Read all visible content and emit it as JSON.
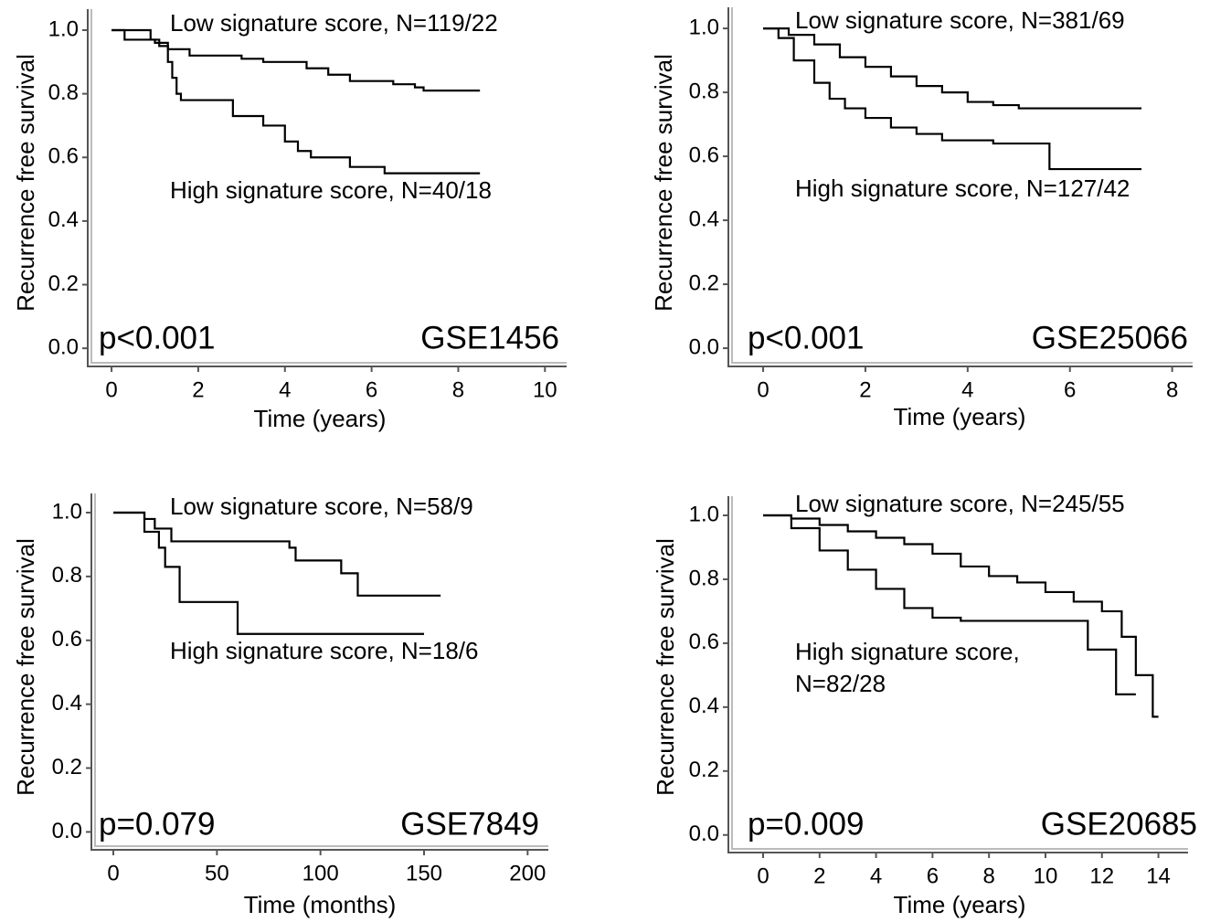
{
  "chart_data": [
    {
      "type": "step",
      "xlabel": "Time (years)",
      "ylabel": "Recurrence free survival",
      "xlim": [
        -0.55,
        10.5
      ],
      "ylim": [
        -0.057,
        1.066
      ],
      "xticks": [
        0,
        2,
        4,
        6,
        8,
        10
      ],
      "yticks": [
        {
          "value": 0,
          "label": "0.0"
        },
        0.2,
        0.4,
        0.6,
        0.8,
        {
          "value": 1,
          "label": "1.0"
        }
      ],
      "annotations": [
        "Low signature score, N=119/22",
        "High signature score, N=40/18",
        "p<0.001",
        "GSE1456"
      ],
      "series": [
        {
          "color": "#000000",
          "x": [
            0,
            0.3,
            1.0,
            1.3,
            1.8,
            3.0,
            3.5,
            4.5,
            5.0,
            5.5,
            6.5,
            7.0,
            7.2,
            8.5
          ],
          "values": [
            1,
            0.97,
            0.96,
            0.94,
            0.92,
            0.91,
            0.9,
            0.88,
            0.86,
            0.84,
            0.83,
            0.82,
            0.81,
            0.81
          ]
        },
        {
          "color": "#000000",
          "x": [
            0,
            0.9,
            1.1,
            1.3,
            1.4,
            1.5,
            1.6,
            2.8,
            3.5,
            4.0,
            4.3,
            4.6,
            5.5,
            6.3,
            8.5
          ],
          "values": [
            1,
            0.97,
            0.95,
            0.9,
            0.85,
            0.8,
            0.78,
            0.73,
            0.7,
            0.65,
            0.62,
            0.6,
            0.57,
            0.55,
            0.55
          ]
        }
      ]
    },
    {
      "type": "step",
      "xlabel": "Time (years)",
      "ylabel": "Recurrence free survival",
      "xlim": [
        -0.68,
        8.4
      ],
      "ylim": [
        -0.057,
        1.066
      ],
      "xticks": [
        0,
        2,
        4,
        6,
        8
      ],
      "yticks": [
        {
          "value": 0,
          "label": "0.0"
        },
        0.2,
        0.4,
        0.6,
        0.8,
        {
          "value": 1,
          "label": "1.0"
        }
      ],
      "annotations": [
        "Low signature score, N=381/69",
        "High signature score, N=127/42",
        "p<0.001",
        "GSE25066"
      ],
      "series": [
        {
          "color": "#000000",
          "x": [
            0,
            0.5,
            1.0,
            1.5,
            2.0,
            2.5,
            3.0,
            3.5,
            4.0,
            4.5,
            5.0,
            7.4
          ],
          "values": [
            1,
            0.98,
            0.95,
            0.91,
            0.88,
            0.85,
            0.82,
            0.8,
            0.77,
            0.76,
            0.75,
            0.75
          ]
        },
        {
          "color": "#000000",
          "x": [
            0,
            0.3,
            0.6,
            1.0,
            1.3,
            1.6,
            2.0,
            2.5,
            3.0,
            3.5,
            4.5,
            5.6,
            7.4
          ],
          "values": [
            1,
            0.97,
            0.9,
            0.83,
            0.78,
            0.75,
            0.72,
            0.69,
            0.67,
            0.65,
            0.64,
            0.56,
            0.56
          ]
        }
      ]
    },
    {
      "type": "step",
      "xlabel": "Time (months)",
      "ylabel": "Recurrence free survival",
      "xlim": [
        -10.6,
        210
      ],
      "ylim": [
        -0.056,
        1.06
      ],
      "xticks": [
        0,
        50,
        100,
        150,
        200
      ],
      "yticks": [
        {
          "value": 0,
          "label": "0.0"
        },
        0.2,
        0.4,
        0.6,
        0.8,
        {
          "value": 1,
          "label": "1.0"
        }
      ],
      "annotations": [
        "Low signature score, N=58/9",
        "High signature score, N=18/6",
        "p=0.079",
        "GSE7849"
      ],
      "series": [
        {
          "color": "#000000",
          "x": [
            0,
            15,
            20,
            28,
            85,
            88,
            110,
            118,
            158
          ],
          "values": [
            1,
            0.98,
            0.95,
            0.91,
            0.89,
            0.85,
            0.81,
            0.74,
            0.74
          ]
        },
        {
          "color": "#000000",
          "x": [
            0,
            15,
            22,
            25,
            32,
            60,
            150
          ],
          "values": [
            1,
            0.94,
            0.89,
            0.83,
            0.72,
            0.62,
            0.62
          ]
        }
      ]
    },
    {
      "type": "step",
      "xlabel": "Time (years)",
      "ylabel": "Recurrence free survival",
      "xlim": [
        -1.23,
        15.05
      ],
      "ylim": [
        -0.055,
        1.06
      ],
      "xticks": [
        0,
        2,
        4,
        6,
        8,
        10,
        12,
        14
      ],
      "yticks": [
        {
          "value": 0,
          "label": "0.0"
        },
        0.2,
        0.4,
        0.6,
        0.8,
        {
          "value": 1,
          "label": "1.0"
        }
      ],
      "annotations": [
        "Low signature score, N=245/55",
        "High signature score,",
        "N=82/28",
        "p=0.009",
        "GSE20685"
      ],
      "series": [
        {
          "color": "#000000",
          "x": [
            0,
            1,
            2,
            3,
            4,
            5,
            6,
            7,
            8,
            9,
            10,
            11,
            12,
            12.7,
            13.2,
            13.8,
            14
          ],
          "values": [
            1,
            0.99,
            0.97,
            0.95,
            0.93,
            0.91,
            0.88,
            0.84,
            0.81,
            0.79,
            0.76,
            0.73,
            0.7,
            0.62,
            0.5,
            0.37,
            0.37
          ]
        },
        {
          "color": "#000000",
          "x": [
            0,
            1,
            2,
            3,
            4,
            5,
            6,
            7,
            11.3,
            11.5,
            12.5,
            13.2
          ],
          "values": [
            1,
            0.96,
            0.89,
            0.83,
            0.77,
            0.71,
            0.68,
            0.67,
            0.67,
            0.58,
            0.44,
            0.44
          ]
        }
      ]
    }
  ]
}
